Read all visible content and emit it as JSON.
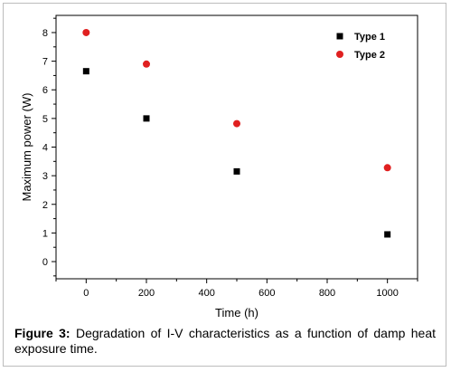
{
  "chart_data": {
    "type": "scatter",
    "xlabel": "Time (h)",
    "ylabel": "Maximum power (W)",
    "xlim": [
      -100,
      1100
    ],
    "ylim": [
      -0.6,
      8.6
    ],
    "xticks": [
      0,
      200,
      400,
      600,
      800,
      1000
    ],
    "yticks": [
      0,
      1,
      2,
      3,
      4,
      5,
      6,
      7,
      8
    ],
    "grid": false,
    "legend_position": "top-right",
    "series": [
      {
        "name": "Type 1",
        "marker": "square",
        "color": "#000000",
        "x": [
          0,
          200,
          500,
          1000
        ],
        "y": [
          6.65,
          5.0,
          3.15,
          0.95
        ]
      },
      {
        "name": "Type 2",
        "marker": "circle",
        "color": "#e02020",
        "x": [
          0,
          200,
          500,
          1000
        ],
        "y": [
          8.0,
          6.9,
          4.82,
          3.28
        ]
      }
    ]
  },
  "caption": {
    "label": "Figure 3:",
    "text": "Degradation of I-V characteristics as a function of damp heat exposure time."
  }
}
